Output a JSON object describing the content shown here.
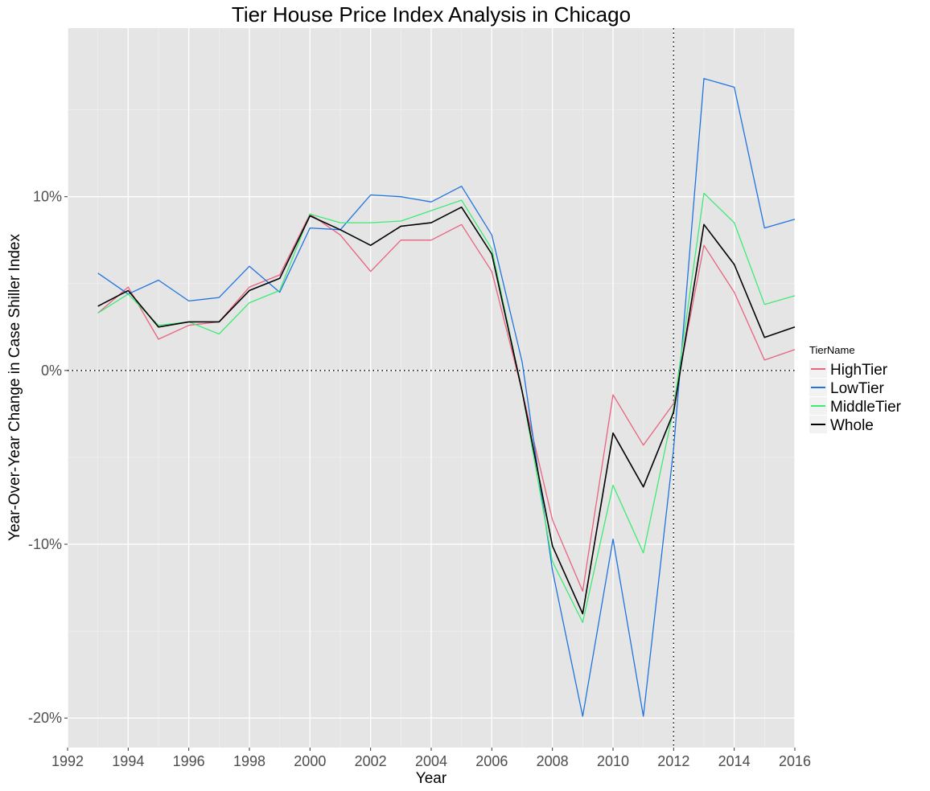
{
  "chart_data": {
    "type": "line",
    "title": "Tier House Price Index Analysis in  Chicago",
    "xlabel": "Year",
    "ylabel": "Year-Over-Year Change in Case Shiller Index",
    "xlim": [
      1992,
      2016
    ],
    "ylim": [
      -0.217,
      0.197
    ],
    "x_ticks": [
      1992,
      1994,
      1996,
      1998,
      2000,
      2002,
      2004,
      2006,
      2008,
      2010,
      2012,
      2014,
      2016
    ],
    "x_tick_labels": [
      "1992",
      "1994",
      "1996",
      "1998",
      "2000",
      "2002",
      "2004",
      "2006",
      "2008",
      "2010",
      "2012",
      "2014",
      "2016"
    ],
    "y_ticks": [
      0.1,
      0.0,
      -0.1,
      -0.2
    ],
    "y_tick_labels": [
      "10%",
      "0%",
      "-10%",
      "-20%"
    ],
    "grid": true,
    "reference_lines": {
      "horizontal_y": 0.0,
      "vertical_x": 2012,
      "style": "dotted"
    },
    "legend": {
      "title": "TierName",
      "position": "right"
    },
    "x": [
      1993,
      1994,
      1995,
      1996,
      1997,
      1998,
      1999,
      2000,
      2001,
      2002,
      2003,
      2004,
      2005,
      2006,
      2007,
      2008,
      2009,
      2010,
      2011,
      2012,
      2013,
      2014,
      2015,
      2016
    ],
    "series": [
      {
        "name": "HighTier",
        "color": "#e8637f",
        "values": [
          0.033,
          0.048,
          0.018,
          0.026,
          0.028,
          0.048,
          0.055,
          0.09,
          0.078,
          0.057,
          0.075,
          0.075,
          0.084,
          0.057,
          -0.012,
          -0.086,
          -0.127,
          -0.014,
          -0.043,
          -0.019,
          0.072,
          0.045,
          0.006,
          0.012
        ]
      },
      {
        "name": "LowTier",
        "color": "#1f74e0",
        "values": [
          0.056,
          0.044,
          0.052,
          0.04,
          0.042,
          0.06,
          0.045,
          0.082,
          0.081,
          0.101,
          0.1,
          0.097,
          0.106,
          0.078,
          0.005,
          -0.115,
          -0.199,
          -0.097,
          -0.199,
          -0.045,
          0.168,
          0.163,
          0.082,
          0.087
        ]
      },
      {
        "name": "MiddleTier",
        "color": "#3deb74",
        "values": [
          0.033,
          0.044,
          0.026,
          0.028,
          0.021,
          0.039,
          0.046,
          0.09,
          0.085,
          0.085,
          0.086,
          0.092,
          0.098,
          0.07,
          -0.012,
          -0.11,
          -0.145,
          -0.066,
          -0.105,
          -0.022,
          0.102,
          0.085,
          0.038,
          0.043
        ]
      },
      {
        "name": "Whole",
        "color": "#000000",
        "values": [
          0.037,
          0.046,
          0.025,
          0.028,
          0.028,
          0.046,
          0.053,
          0.089,
          0.081,
          0.072,
          0.083,
          0.085,
          0.094,
          0.067,
          -0.012,
          -0.101,
          -0.14,
          -0.036,
          -0.067,
          -0.024,
          0.084,
          0.061,
          0.019,
          0.025
        ]
      }
    ]
  }
}
